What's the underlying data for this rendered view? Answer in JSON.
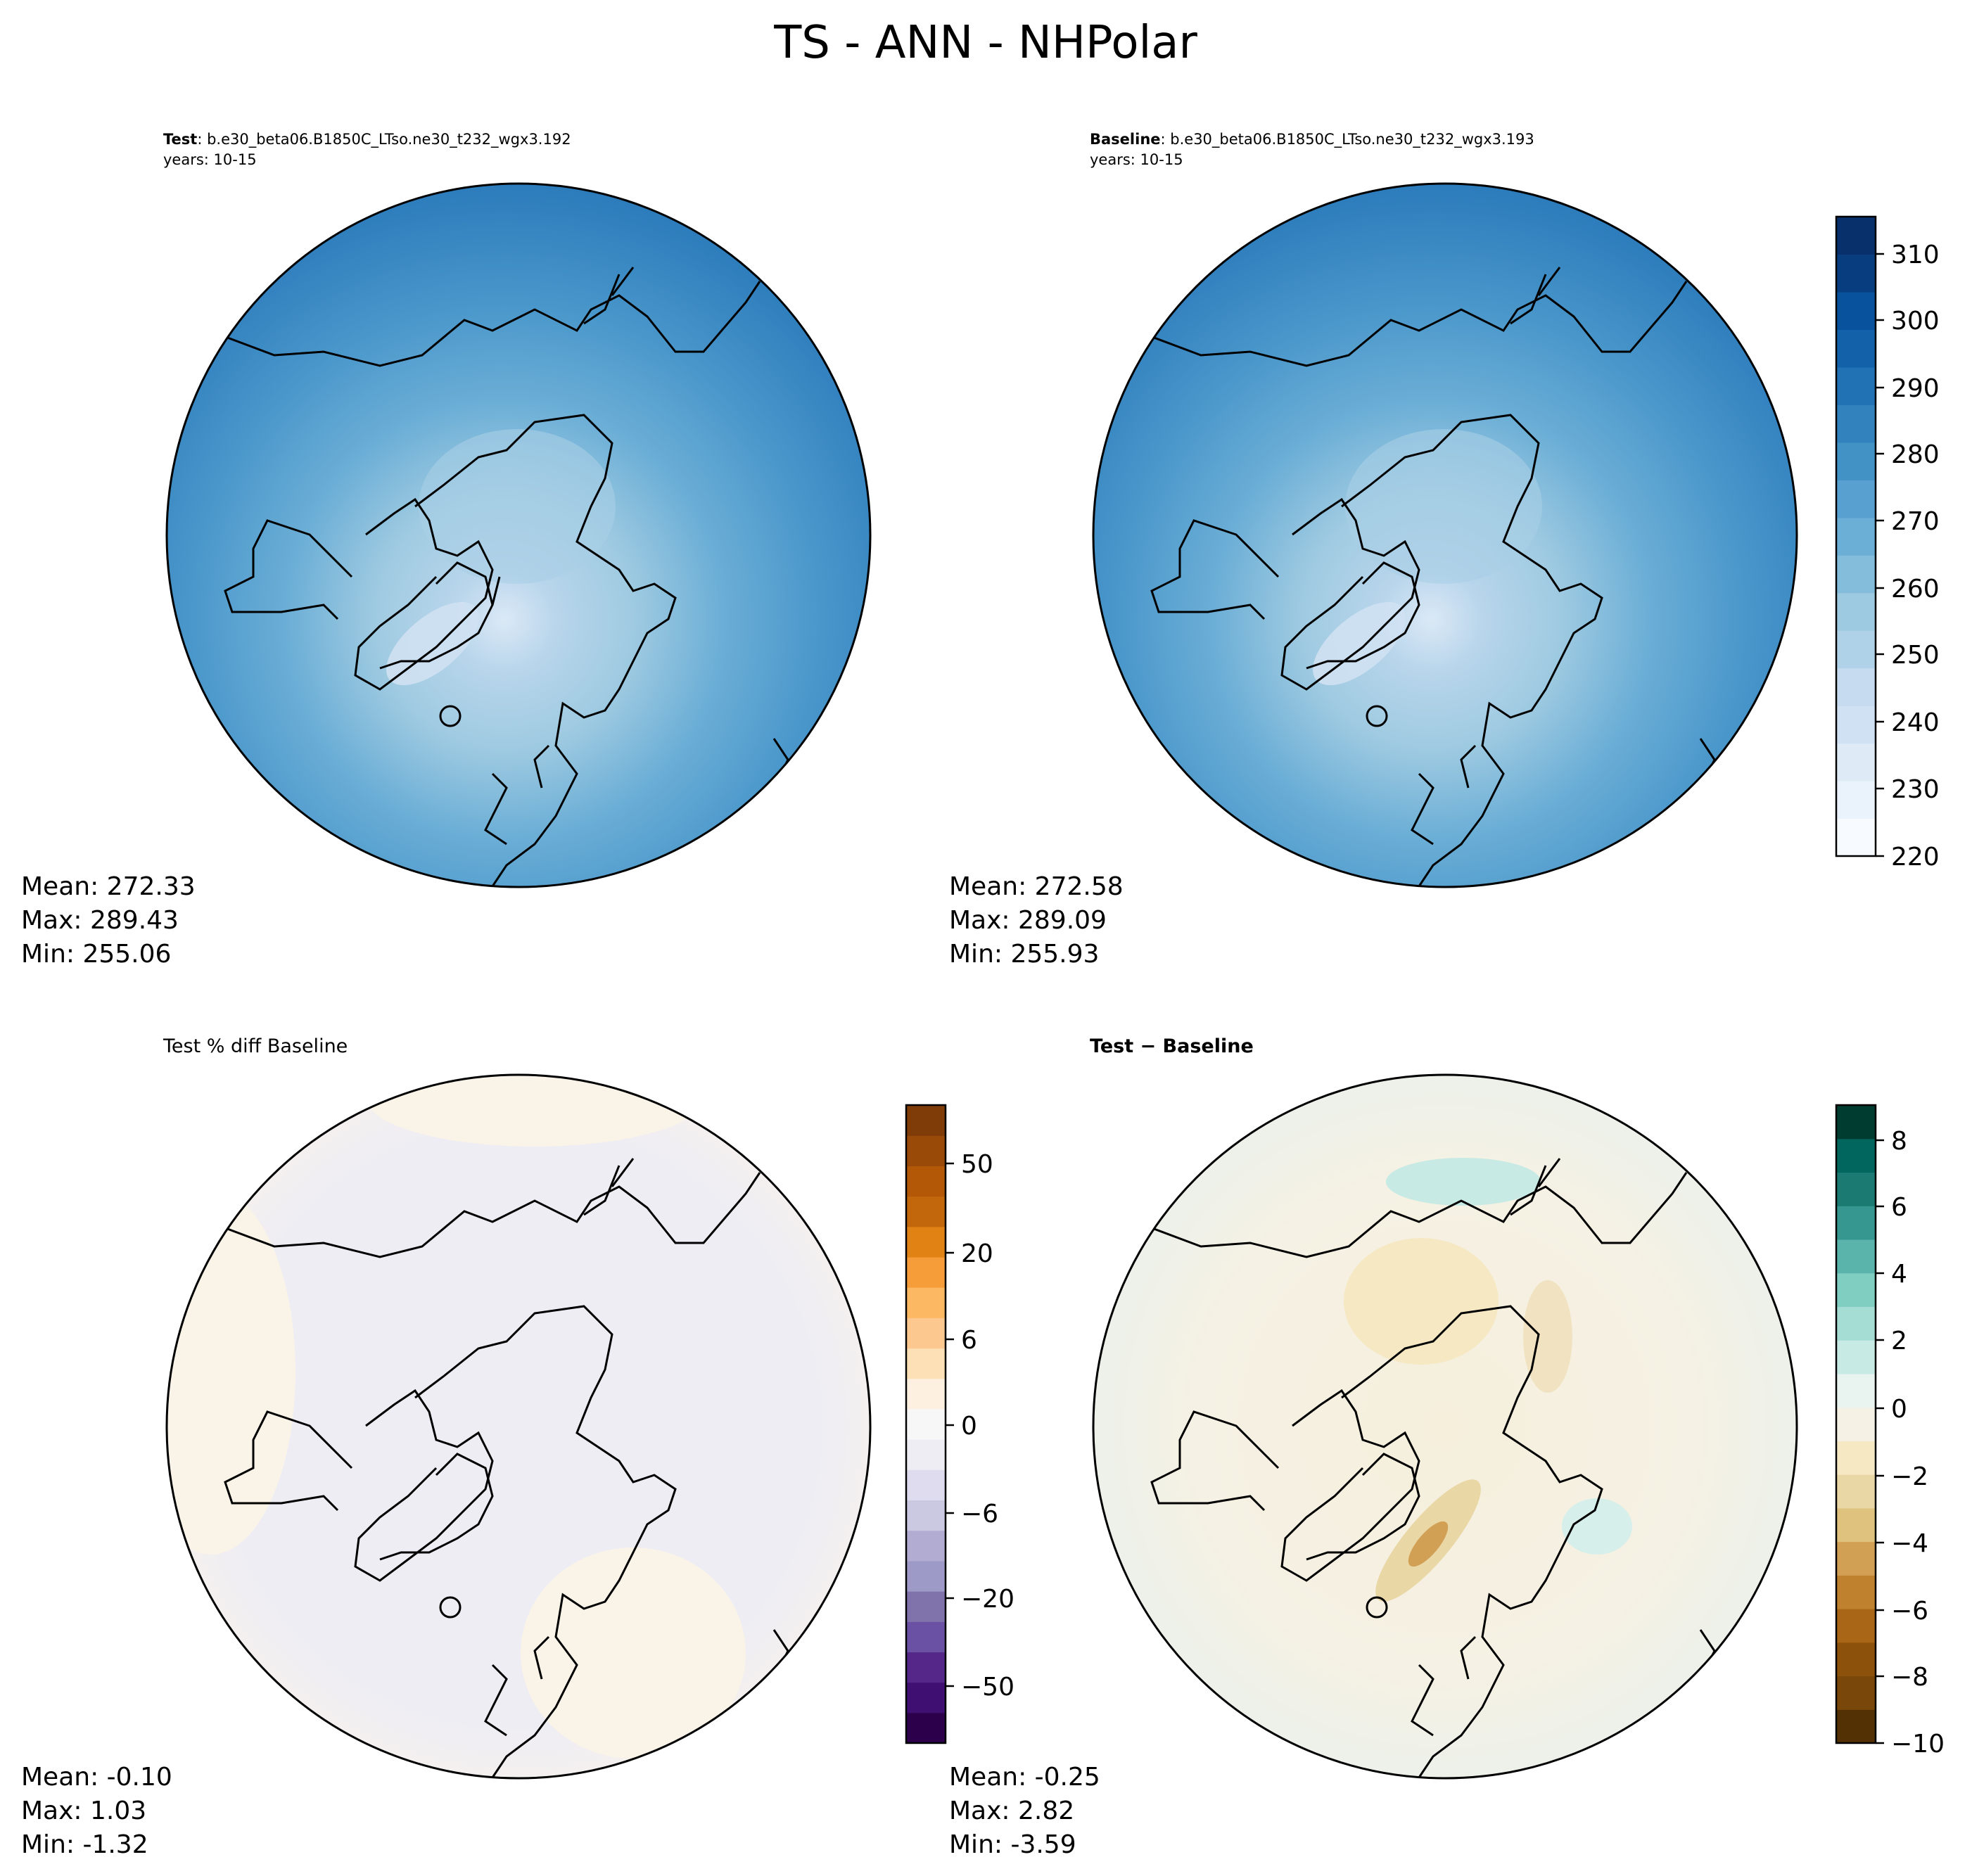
{
  "figure": {
    "title": "TS - ANN - NHPolar"
  },
  "panels": [
    {
      "id": "test",
      "title_bold": "Test",
      "title_rest": ": b.e30_beta06.B1850C_LTso.ne30_t232_wgx3.192",
      "subtitle": "years: 10-15",
      "stats": {
        "mean": "Mean: 272.33",
        "max": "Max: 289.43",
        "min": "Min: 255.06"
      },
      "palette": "blues"
    },
    {
      "id": "baseline",
      "title_bold": "Baseline",
      "title_rest": ": b.e30_beta06.B1850C_LTso.ne30_t232_wgx3.193",
      "subtitle": "years: 10-15",
      "stats": {
        "mean": "Mean: 272.58",
        "max": "Max: 289.09",
        "min": "Min: 255.93"
      },
      "palette": "blues"
    },
    {
      "id": "pctdiff",
      "title_plain": "Test % diff Baseline",
      "stats": {
        "mean": "Mean: -0.10",
        "max": "Max:  1.03",
        "min": "Min: -1.32"
      },
      "palette": "purple-orange"
    },
    {
      "id": "diff",
      "title_bold": "Test − Baseline",
      "stats": {
        "mean": "Mean: -0.25",
        "max": "Max:  2.82",
        "min": "Min: -3.59"
      },
      "palette": "brown-teal"
    }
  ],
  "colorbars": {
    "blues": {
      "ticks": [
        "310",
        "300",
        "290",
        "280",
        "270",
        "260",
        "250",
        "240",
        "230",
        "220"
      ],
      "colors": [
        "#f7fbff",
        "#eaf3fb",
        "#deebf7",
        "#cfe1f2",
        "#c6dbef",
        "#b0d2e8",
        "#9ecae1",
        "#84bcdb",
        "#6baed6",
        "#57a0cf",
        "#4292c6",
        "#3282be",
        "#2171b5",
        "#1361a9",
        "#08519c",
        "#083d7f",
        "#08306b"
      ]
    },
    "pctdiff": {
      "ticks": [
        "50",
        "20",
        "6",
        "0",
        "−6",
        "−20",
        "−50"
      ],
      "colors": [
        "#2d004b",
        "#3f0f72",
        "#542788",
        "#6a51a3",
        "#8073ac",
        "#9e9ac8",
        "#b2abd2",
        "#cbc9e2",
        "#dedcee",
        "#eeedf4",
        "#f7f7f7",
        "#fdf0e1",
        "#fee0b6",
        "#fdc88f",
        "#fdb863",
        "#f69d3a",
        "#e08214",
        "#c3670c",
        "#b35806",
        "#9a4a08",
        "#7f3b08"
      ]
    },
    "diff": {
      "ticks": [
        "8",
        "6",
        "4",
        "2",
        "0",
        "−2",
        "−4",
        "−6",
        "−8",
        "−10"
      ],
      "colors": [
        "#543005",
        "#7a470a",
        "#8c510a",
        "#a86616",
        "#bf812d",
        "#d1a055",
        "#dfc27d",
        "#ead7a6",
        "#f6e8c3",
        "#f5f1e4",
        "#e9f3ef",
        "#c7eae5",
        "#a5dcd3",
        "#80cdc1",
        "#5ab4ac",
        "#35978f",
        "#1b7a71",
        "#01665e",
        "#003c30"
      ]
    }
  }
}
